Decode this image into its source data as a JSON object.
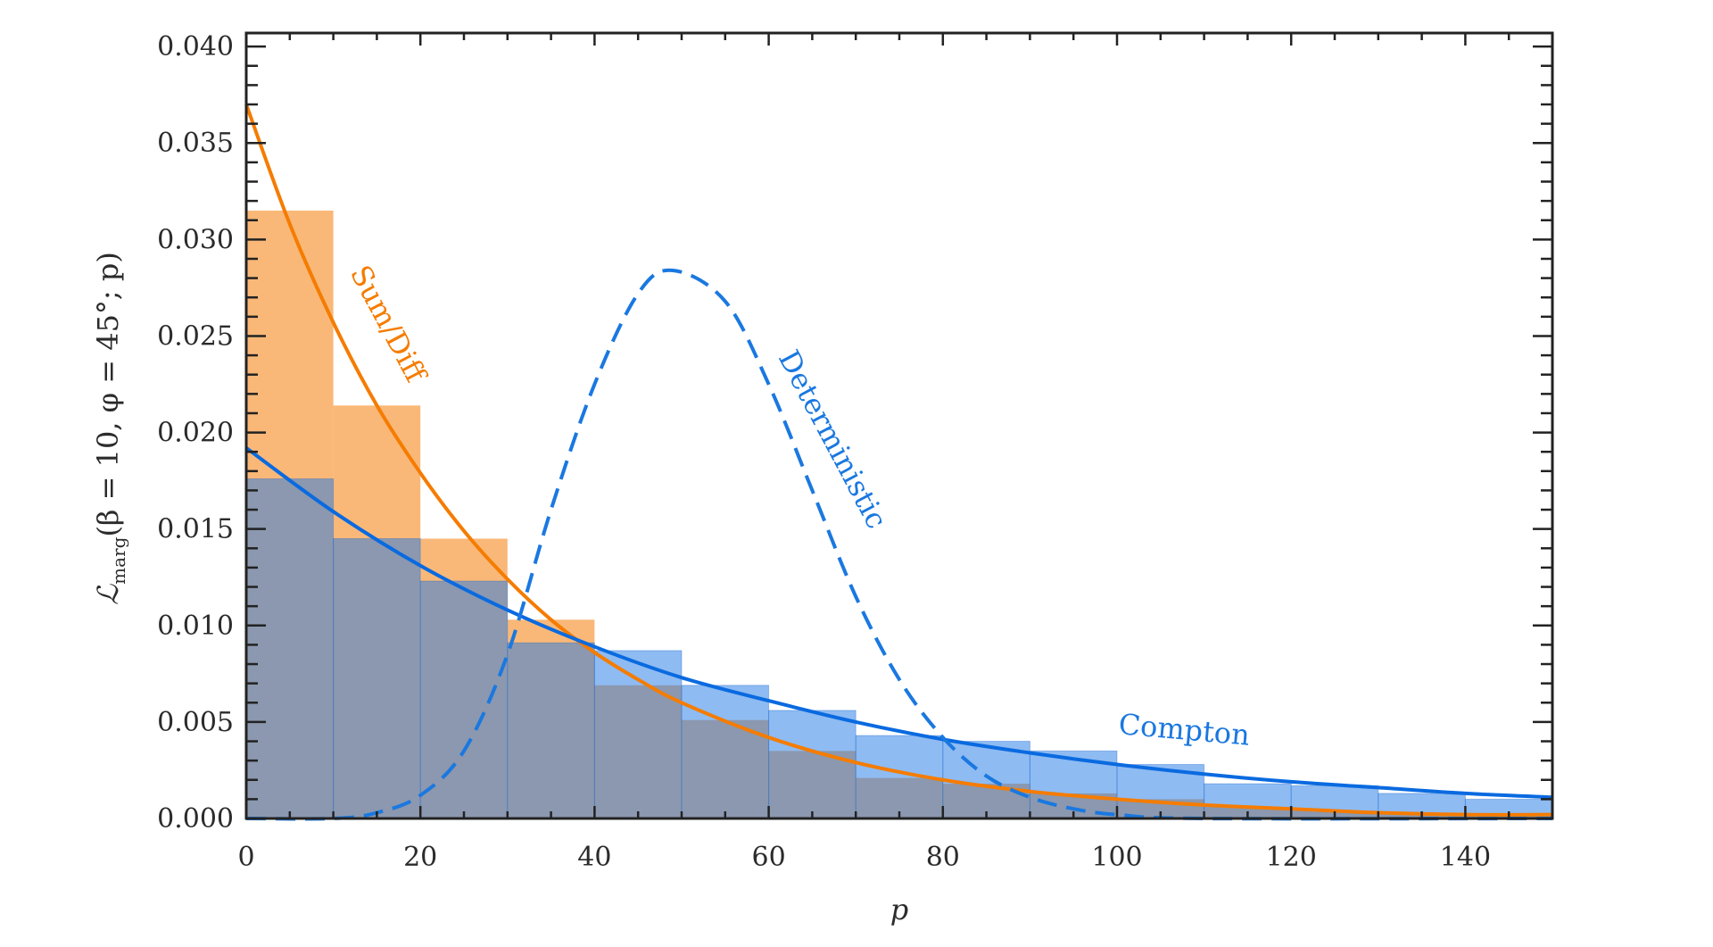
{
  "chart_data": {
    "type": "bar",
    "title": "",
    "xlabel": "p",
    "ylabel": {
      "main": "ℒ",
      "sub": "marg",
      "rest": "(β = 10, φ = 45°; p)"
    },
    "xlim": [
      0,
      150
    ],
    "ylim": [
      0,
      0.0407
    ],
    "grid": false,
    "x_ticks": [
      "0",
      "20",
      "40",
      "60",
      "80",
      "100",
      "120",
      "140"
    ],
    "y_ticks": [
      "0.000",
      "0.005",
      "0.010",
      "0.015",
      "0.020",
      "0.025",
      "0.030",
      "0.035",
      "0.040"
    ],
    "bin_edges": [
      0,
      10,
      20,
      30,
      40,
      50,
      60,
      70,
      80,
      90,
      100,
      110,
      120,
      130,
      140,
      150
    ],
    "histograms": [
      {
        "name": "Sum/Diff",
        "color": "#f9b878",
        "values": [
          0.0315,
          0.0214,
          0.0145,
          0.0103,
          0.0069,
          0.0051,
          0.0035,
          0.0021,
          0.0018,
          0.0013,
          0.001,
          0.0006,
          0.0004,
          0.0003,
          0.0002
        ]
      },
      {
        "name": "Compton",
        "color": "#1e78e6",
        "values": [
          0.0176,
          0.0145,
          0.0123,
          0.0091,
          0.0087,
          0.0069,
          0.0056,
          0.0043,
          0.004,
          0.0035,
          0.0028,
          0.0018,
          0.0017,
          0.0013,
          0.001
        ]
      }
    ],
    "curves": [
      {
        "name": "Sum/Diff",
        "color": "#f57c00",
        "style": "solid",
        "x": [
          0,
          5,
          10,
          15,
          20,
          25,
          30,
          35,
          40,
          45,
          50,
          60,
          70,
          80,
          90,
          100,
          110,
          120,
          130,
          140,
          150
        ],
        "y": [
          0.037,
          0.0308,
          0.0257,
          0.0214,
          0.0179,
          0.0149,
          0.0124,
          0.0103,
          0.0086,
          0.0072,
          0.006,
          0.0042,
          0.0029,
          0.002,
          0.0014,
          0.001,
          0.0007,
          0.0005,
          0.0003,
          0.0002,
          0.0002
        ]
      },
      {
        "name": "Compton",
        "color": "#0a6ae0",
        "style": "solid",
        "x": [
          0,
          10,
          20,
          30,
          40,
          50,
          60,
          70,
          80,
          90,
          100,
          110,
          120,
          130,
          140,
          150
        ],
        "y": [
          0.0192,
          0.0159,
          0.0131,
          0.0108,
          0.0089,
          0.0073,
          0.0061,
          0.005,
          0.0041,
          0.0034,
          0.0028,
          0.0023,
          0.0019,
          0.0016,
          0.0013,
          0.0011
        ]
      },
      {
        "name": "Deterministic",
        "color": "#1a78e0",
        "style": "dashed",
        "x": [
          0,
          10,
          15,
          20,
          25,
          30,
          35,
          40,
          45,
          49,
          55,
          60,
          65,
          70,
          75,
          80,
          85,
          90,
          95,
          100,
          110,
          150
        ],
        "y": [
          0,
          0,
          0.0003,
          0.0012,
          0.0035,
          0.0085,
          0.016,
          0.0225,
          0.0272,
          0.0284,
          0.0268,
          0.0225,
          0.017,
          0.0115,
          0.0072,
          0.0042,
          0.0022,
          0.0011,
          0.0005,
          0.0002,
          0,
          0
        ]
      }
    ],
    "annotations": [
      {
        "text": "Sum/Diff",
        "color": "#f57c00"
      },
      {
        "text": "Deterministic",
        "color": "#1a78e0"
      },
      {
        "text": "Compton",
        "color": "#1a78e0"
      }
    ]
  }
}
